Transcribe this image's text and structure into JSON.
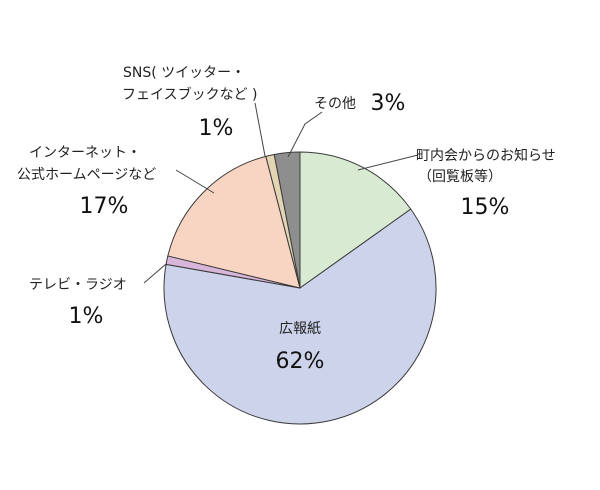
{
  "chart_data": {
    "type": "pie",
    "title": "",
    "slices": [
      {
        "label_lines": [
          "町内会からのお知らせ",
          "（回覧板等）"
        ],
        "value": 15,
        "value_label": "15%",
        "color": "#d8ead2"
      },
      {
        "label_lines": [
          "広報紙"
        ],
        "value": 62,
        "value_label": "62%",
        "color": "#cdd3ea"
      },
      {
        "label_lines": [
          "テレビ・ラジオ"
        ],
        "value": 1,
        "value_label": "1%",
        "color": "#d8b6da"
      },
      {
        "label_lines": [
          "インターネット・",
          "公式ホームページなど"
        ],
        "value": 17,
        "value_label": "17%",
        "color": "#f8d5c2"
      },
      {
        "label_lines": [
          "SNS( ツイッター・",
          "フェイスブックなど )"
        ],
        "value": 1,
        "value_label": "1%",
        "color": "#e3d4b2"
      },
      {
        "label_lines": [
          "その他"
        ],
        "value": 3,
        "value_label": "3%",
        "color": "#8e8e8e"
      }
    ]
  }
}
